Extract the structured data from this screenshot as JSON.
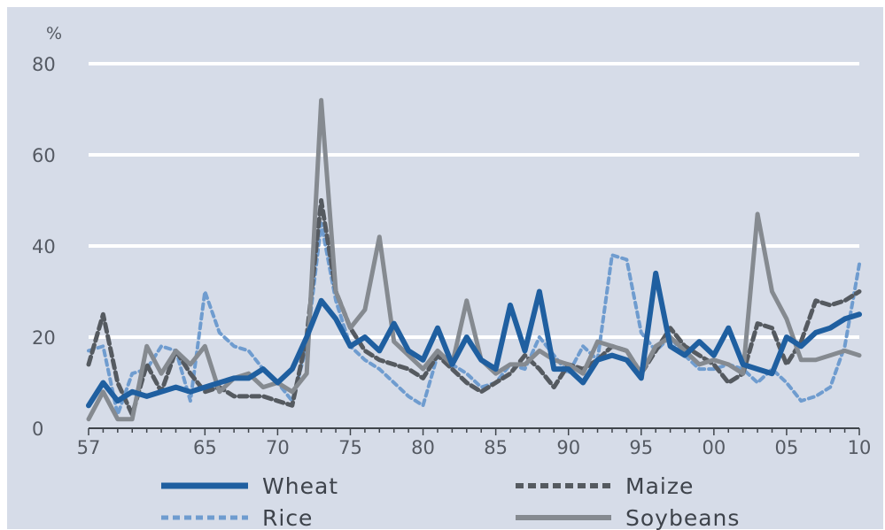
{
  "chart_data": {
    "type": "line",
    "title": "",
    "ylabel": "%",
    "xlabel": "",
    "ylim": [
      0,
      80
    ],
    "yticks": [
      0,
      20,
      40,
      60,
      80
    ],
    "ytick_labels": [
      "0",
      "20",
      "40",
      "60",
      "80"
    ],
    "xlim": [
      1957,
      2010
    ],
    "xticks": [
      1957,
      1965,
      1970,
      1975,
      1980,
      1985,
      1990,
      1995,
      2000,
      2005,
      2010
    ],
    "xtick_labels": [
      "57",
      "65",
      "70",
      "75",
      "80",
      "85",
      "90",
      "95",
      "00",
      "05",
      "10"
    ],
    "grid": "horizontal",
    "legend_position": "bottom",
    "x": [
      1957,
      1958,
      1959,
      1960,
      1961,
      1962,
      1963,
      1964,
      1965,
      1966,
      1967,
      1968,
      1969,
      1970,
      1971,
      1972,
      1973,
      1974,
      1975,
      1976,
      1977,
      1978,
      1979,
      1980,
      1981,
      1982,
      1983,
      1984,
      1985,
      1986,
      1987,
      1988,
      1989,
      1990,
      1991,
      1992,
      1993,
      1994,
      1995,
      1996,
      1997,
      1998,
      1999,
      2000,
      2001,
      2002,
      2003,
      2004,
      2005,
      2006,
      2007,
      2008,
      2009,
      2010
    ],
    "series": [
      {
        "name": "Wheat",
        "color": "#1f5fa0",
        "style": "solid",
        "values": [
          5,
          10,
          6,
          8,
          7,
          8,
          9,
          8,
          9,
          10,
          11,
          11,
          13,
          10,
          13,
          20,
          28,
          24,
          18,
          20,
          17,
          23,
          17,
          15,
          22,
          14,
          20,
          15,
          13,
          27,
          17,
          30,
          13,
          13,
          10,
          15,
          16,
          15,
          11,
          34,
          18,
          16,
          19,
          16,
          22,
          14,
          13,
          12,
          20,
          18,
          21,
          22,
          24,
          25
        ]
      },
      {
        "name": "Maize",
        "color": "#555a60",
        "style": "dashed",
        "values": [
          14,
          25,
          10,
          3,
          14,
          8,
          17,
          12,
          8,
          9,
          7,
          7,
          7,
          6,
          5,
          20,
          50,
          30,
          22,
          17,
          15,
          14,
          13,
          11,
          16,
          13,
          10,
          8,
          10,
          12,
          16,
          13,
          9,
          14,
          13,
          15,
          18,
          17,
          12,
          17,
          22,
          18,
          16,
          14,
          10,
          12,
          23,
          22,
          14,
          19,
          28,
          27,
          28,
          30
        ]
      },
      {
        "name": "Rice",
        "color": "#6f9ccf",
        "style": "dotted",
        "values": [
          17,
          18,
          3,
          12,
          13,
          18,
          17,
          6,
          30,
          21,
          18,
          17,
          13,
          10,
          6,
          18,
          45,
          28,
          18,
          15,
          13,
          10,
          7,
          5,
          16,
          14,
          12,
          9,
          10,
          14,
          13,
          20,
          16,
          12,
          18,
          15,
          38,
          37,
          21,
          17,
          20,
          16,
          13,
          13,
          14,
          13,
          10,
          13,
          10,
          6,
          7,
          9,
          18,
          36
        ]
      },
      {
        "name": "Soybeans",
        "color": "#858a90",
        "style": "solid",
        "values": [
          2,
          8,
          2,
          2,
          18,
          12,
          17,
          14,
          18,
          8,
          11,
          12,
          9,
          10,
          8,
          12,
          72,
          30,
          22,
          26,
          42,
          19,
          16,
          13,
          17,
          14,
          28,
          15,
          12,
          14,
          14,
          17,
          15,
          14,
          12,
          19,
          18,
          17,
          12,
          18,
          20,
          17,
          14,
          15,
          14,
          12,
          47,
          30,
          24,
          15,
          15,
          16,
          17,
          16
        ]
      }
    ]
  },
  "legend": {
    "wheat": "Wheat",
    "maize": "Maize",
    "rice": "Rice",
    "soybeans": "Soybeans"
  }
}
